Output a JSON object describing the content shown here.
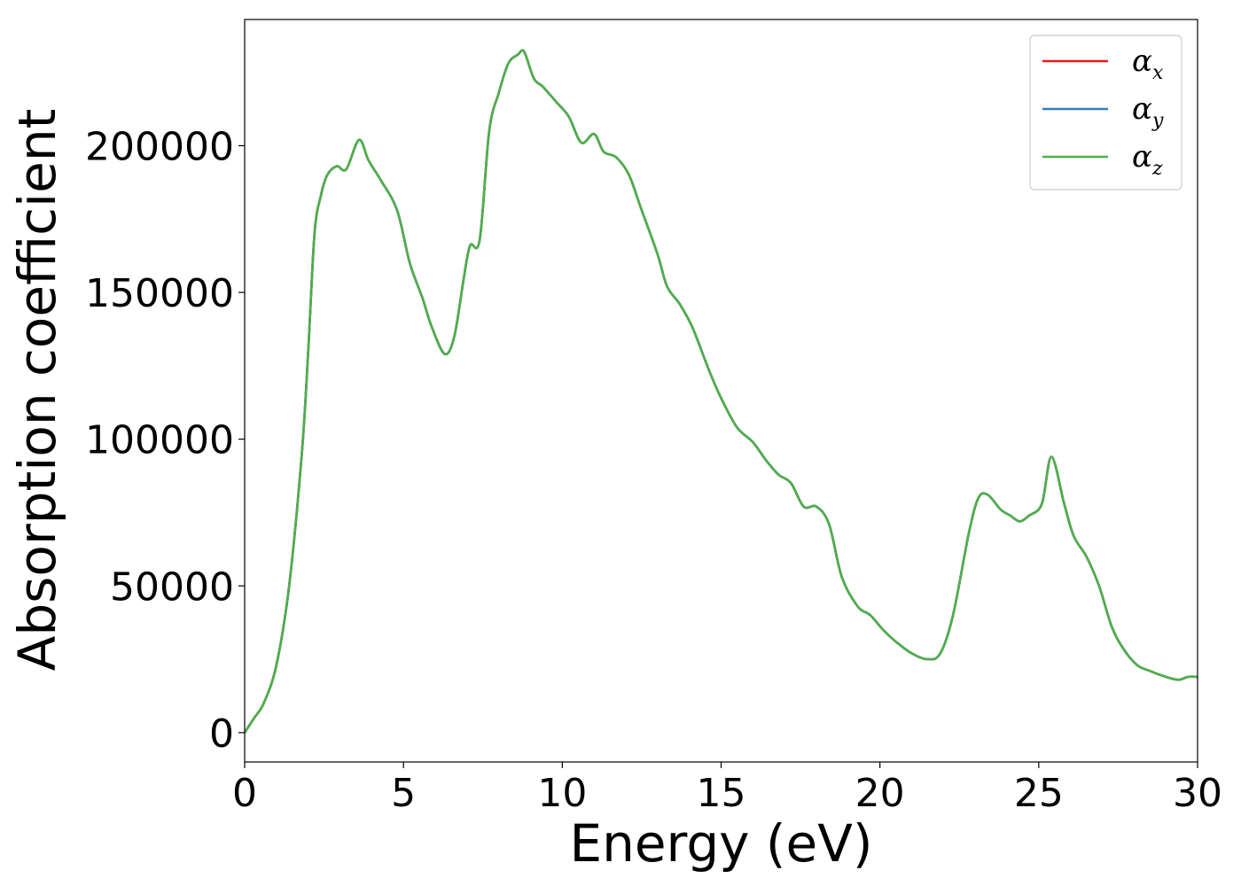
{
  "chart_data": {
    "type": "line",
    "title": "",
    "xlabel": "Energy (eV)",
    "ylabel": "Absorption coefficient",
    "xlim": [
      0,
      30
    ],
    "ylim": [
      -10000,
      243000
    ],
    "grid": false,
    "legend_position": "top-right",
    "x_ticks": [
      0,
      5,
      10,
      15,
      20,
      25,
      30
    ],
    "x_tick_labels": [
      "0",
      "5",
      "10",
      "15",
      "20",
      "25",
      "30"
    ],
    "y_ticks": [
      0,
      50000,
      100000,
      150000,
      200000
    ],
    "y_tick_labels": [
      "0",
      "50000",
      "100000",
      "150000",
      "200000"
    ],
    "x": [
      0,
      0.3,
      0.6,
      1.0,
      1.4,
      1.8,
      2.0,
      2.2,
      2.4,
      2.6,
      2.9,
      3.2,
      3.6,
      3.9,
      4.3,
      4.8,
      5.2,
      5.6,
      5.9,
      6.3,
      6.6,
      6.9,
      7.1,
      7.4,
      7.7,
      8.0,
      8.3,
      8.6,
      8.8,
      9.1,
      9.4,
      9.8,
      10.2,
      10.6,
      11.0,
      11.3,
      11.7,
      12.1,
      12.5,
      13.0,
      13.3,
      13.7,
      14.1,
      14.6,
      15.0,
      15.5,
      16.0,
      16.4,
      16.8,
      17.2,
      17.6,
      18.0,
      18.4,
      18.8,
      19.3,
      19.7,
      20.1,
      20.5,
      21.0,
      21.5,
      21.9,
      22.3,
      22.8,
      23.1,
      23.4,
      23.8,
      24.1,
      24.4,
      24.7,
      25.1,
      25.4,
      25.8,
      26.1,
      26.5,
      26.9,
      27.3,
      27.7,
      28.1,
      28.5,
      29.0,
      29.4,
      29.7,
      30.0
    ],
    "series": [
      {
        "name": "αx",
        "color": "#e41a1c",
        "values": [
          0,
          5000,
          10000,
          23000,
          50000,
          95000,
          130000,
          170000,
          183000,
          190000,
          193000,
          192000,
          202000,
          195000,
          188000,
          178000,
          160000,
          148000,
          138000,
          129000,
          135000,
          155000,
          166000,
          168000,
          205000,
          218000,
          228000,
          231000,
          232000,
          223000,
          220000,
          215000,
          210000,
          201000,
          204000,
          198000,
          196000,
          190000,
          178000,
          163000,
          152000,
          146000,
          138000,
          124000,
          114000,
          104000,
          99000,
          93000,
          88000,
          85000,
          77000,
          77000,
          71000,
          53000,
          43000,
          40000,
          35000,
          31000,
          27000,
          25000,
          27000,
          40000,
          68000,
          80000,
          81000,
          76000,
          74000,
          72000,
          74000,
          78000,
          94000,
          78000,
          67000,
          60000,
          50000,
          36000,
          28000,
          23000,
          21000,
          19000,
          18000,
          19000,
          19000
        ]
      },
      {
        "name": "αy",
        "color": "#377eb8",
        "values": [
          0,
          5000,
          10000,
          23000,
          50000,
          95000,
          130000,
          170000,
          183000,
          190000,
          193000,
          192000,
          202000,
          195000,
          188000,
          178000,
          160000,
          148000,
          138000,
          129000,
          135000,
          155000,
          166000,
          168000,
          205000,
          218000,
          228000,
          231000,
          232000,
          223000,
          220000,
          215000,
          210000,
          201000,
          204000,
          198000,
          196000,
          190000,
          178000,
          163000,
          152000,
          146000,
          138000,
          124000,
          114000,
          104000,
          99000,
          93000,
          88000,
          85000,
          77000,
          77000,
          71000,
          53000,
          43000,
          40000,
          35000,
          31000,
          27000,
          25000,
          27000,
          40000,
          68000,
          80000,
          81000,
          76000,
          74000,
          72000,
          74000,
          78000,
          94000,
          78000,
          67000,
          60000,
          50000,
          36000,
          28000,
          23000,
          21000,
          19000,
          18000,
          19000,
          19000
        ]
      },
      {
        "name": "αz",
        "color": "#4daf4a",
        "values": [
          0,
          5000,
          10000,
          23000,
          50000,
          95000,
          130000,
          170000,
          183000,
          190000,
          193000,
          192000,
          202000,
          195000,
          188000,
          178000,
          160000,
          148000,
          138000,
          129000,
          135000,
          155000,
          166000,
          168000,
          205000,
          218000,
          228000,
          231000,
          232000,
          223000,
          220000,
          215000,
          210000,
          201000,
          204000,
          198000,
          196000,
          190000,
          178000,
          163000,
          152000,
          146000,
          138000,
          124000,
          114000,
          104000,
          99000,
          93000,
          88000,
          85000,
          77000,
          77000,
          71000,
          53000,
          43000,
          40000,
          35000,
          31000,
          27000,
          25000,
          27000,
          40000,
          68000,
          80000,
          81000,
          76000,
          74000,
          72000,
          74000,
          78000,
          94000,
          78000,
          67000,
          60000,
          50000,
          36000,
          28000,
          23000,
          21000,
          19000,
          18000,
          19000,
          19000
        ]
      }
    ],
    "legend": [
      {
        "base": "α",
        "sub": "x",
        "color": "#e41a1c"
      },
      {
        "base": "α",
        "sub": "y",
        "color": "#377eb8"
      },
      {
        "base": "α",
        "sub": "z",
        "color": "#4daf4a"
      }
    ]
  }
}
